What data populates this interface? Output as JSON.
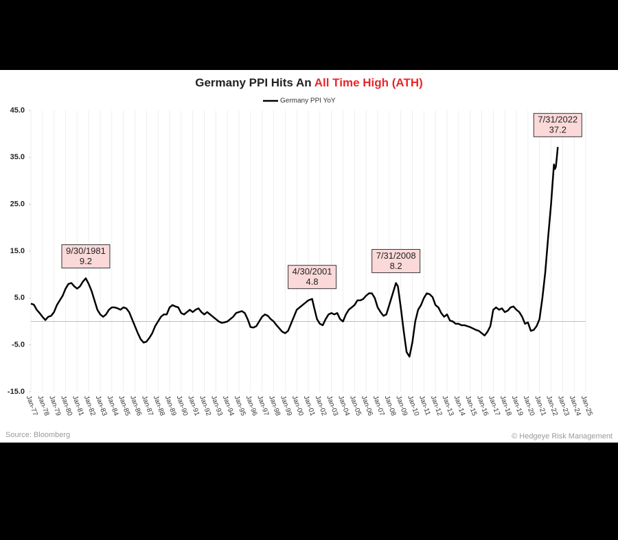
{
  "chart_data": {
    "type": "line",
    "title_parts": [
      "Germany PPI Hits An",
      "All Time High (ATH)"
    ],
    "title_colors": [
      "#222222",
      "#e8262b"
    ],
    "source": "Source: Bloomberg",
    "credit": "© Hedgeye Risk Management",
    "legend": "top",
    "grid": true,
    "xlim": [
      1977,
      2025
    ],
    "xticks": [
      {
        "value": 1977,
        "label": "Jan-77"
      },
      {
        "value": 1978,
        "label": "Jan-78"
      },
      {
        "value": 1979,
        "label": "Jan-79"
      },
      {
        "value": 1980,
        "label": "Jan-80"
      },
      {
        "value": 1981,
        "label": "Jan-81"
      },
      {
        "value": 1982,
        "label": "Jan-82"
      },
      {
        "value": 1983,
        "label": "Jan-83"
      },
      {
        "value": 1984,
        "label": "Jan-84"
      },
      {
        "value": 1985,
        "label": "Jan-85"
      },
      {
        "value": 1986,
        "label": "Jan-86"
      },
      {
        "value": 1987,
        "label": "Jan-87"
      },
      {
        "value": 1988,
        "label": "Jan-88"
      },
      {
        "value": 1989,
        "label": "Jan-89"
      },
      {
        "value": 1990,
        "label": "Jan-90"
      },
      {
        "value": 1991,
        "label": "Jan-91"
      },
      {
        "value": 1992,
        "label": "Jan-92"
      },
      {
        "value": 1993,
        "label": "Jan-93"
      },
      {
        "value": 1994,
        "label": "Jan-94"
      },
      {
        "value": 1995,
        "label": "Jan-95"
      },
      {
        "value": 1996,
        "label": "Jan-96"
      },
      {
        "value": 1997,
        "label": "Jan-97"
      },
      {
        "value": 1998,
        "label": "Jan-98"
      },
      {
        "value": 1999,
        "label": "Jan-99"
      },
      {
        "value": 2000,
        "label": "Jan-00"
      },
      {
        "value": 2001,
        "label": "Jan-01"
      },
      {
        "value": 2002,
        "label": "Jan-02"
      },
      {
        "value": 2003,
        "label": "Jan-03"
      },
      {
        "value": 2004,
        "label": "Jan-04"
      },
      {
        "value": 2005,
        "label": "Jan-05"
      },
      {
        "value": 2006,
        "label": "Jan-06"
      },
      {
        "value": 2007,
        "label": "Jan-07"
      },
      {
        "value": 2008,
        "label": "Jan-08"
      },
      {
        "value": 2009,
        "label": "Jan-09"
      },
      {
        "value": 2010,
        "label": "Jan-10"
      },
      {
        "value": 2011,
        "label": "Jan-11"
      },
      {
        "value": 2012,
        "label": "Jan-12"
      },
      {
        "value": 2013,
        "label": "Jan-13"
      },
      {
        "value": 2014,
        "label": "Jan-14"
      },
      {
        "value": 2015,
        "label": "Jan-15"
      },
      {
        "value": 2016,
        "label": "Jan-16"
      },
      {
        "value": 2017,
        "label": "Jan-17"
      },
      {
        "value": 2018,
        "label": "Jan-18"
      },
      {
        "value": 2019,
        "label": "Jan-19"
      },
      {
        "value": 2020,
        "label": "Jan-20"
      },
      {
        "value": 2021,
        "label": "Jan-21"
      },
      {
        "value": 2022,
        "label": "Jan-22"
      },
      {
        "value": 2023,
        "label": "Jan-23"
      },
      {
        "value": 2024,
        "label": "Jan-24"
      },
      {
        "value": 2025,
        "label": "Jan-25"
      }
    ],
    "ylim": [
      -15,
      45
    ],
    "yticks": [
      {
        "value": 45,
        "label": "45.0"
      },
      {
        "value": 35,
        "label": "35.0"
      },
      {
        "value": 25,
        "label": "25.0"
      },
      {
        "value": 15,
        "label": "15.0"
      },
      {
        "value": 5,
        "label": "5.0"
      },
      {
        "value": -5,
        "label": "-5.0"
      },
      {
        "value": -15,
        "label": "-15.0"
      }
    ],
    "x": [
      1977,
      1977.25,
      1977.5,
      1977.75,
      1978,
      1978.25,
      1978.5,
      1978.75,
      1979,
      1979.25,
      1979.5,
      1979.75,
      1980,
      1980.25,
      1980.5,
      1980.75,
      1981,
      1981.25,
      1981.5,
      1981.75,
      1982,
      1982.25,
      1982.5,
      1982.75,
      1983,
      1983.25,
      1983.5,
      1983.75,
      1984,
      1984.25,
      1984.5,
      1984.75,
      1985,
      1985.25,
      1985.5,
      1985.75,
      1986,
      1986.25,
      1986.5,
      1986.75,
      1987,
      1987.25,
      1987.5,
      1987.75,
      1988,
      1988.25,
      1988.5,
      1988.75,
      1989,
      1989.25,
      1989.5,
      1989.75,
      1990,
      1990.25,
      1990.5,
      1990.75,
      1991,
      1991.25,
      1991.5,
      1991.75,
      1992,
      1992.25,
      1992.5,
      1992.75,
      1993,
      1993.25,
      1993.5,
      1993.75,
      1994,
      1994.25,
      1994.5,
      1994.75,
      1995,
      1995.25,
      1995.5,
      1995.75,
      1996,
      1996.25,
      1996.5,
      1996.75,
      1997,
      1997.25,
      1997.5,
      1997.75,
      1998,
      1998.25,
      1998.5,
      1998.75,
      1999,
      1999.25,
      1999.5,
      1999.75,
      2000,
      2000.25,
      2000.5,
      2000.75,
      2001,
      2001.33,
      2001.5,
      2001.75,
      2002,
      2002.25,
      2002.5,
      2002.75,
      2003,
      2003.25,
      2003.5,
      2003.75,
      2004,
      2004.25,
      2004.5,
      2004.75,
      2005,
      2005.25,
      2005.5,
      2005.75,
      2006,
      2006.25,
      2006.5,
      2006.75,
      2007,
      2007.25,
      2007.5,
      2007.75,
      2008,
      2008.25,
      2008.583,
      2008.75,
      2009,
      2009.25,
      2009.5,
      2009.75,
      2010,
      2010.25,
      2010.5,
      2010.75,
      2011,
      2011.25,
      2011.5,
      2011.75,
      2012,
      2012.25,
      2012.5,
      2012.75,
      2013,
      2013.25,
      2013.5,
      2013.75,
      2014,
      2014.25,
      2014.5,
      2014.75,
      2015,
      2015.25,
      2015.5,
      2015.75,
      2016,
      2016.25,
      2016.5,
      2016.75,
      2017,
      2017.25,
      2017.5,
      2017.75,
      2018,
      2018.25,
      2018.5,
      2018.75,
      2019,
      2019.25,
      2019.5,
      2019.75,
      2020,
      2020.25,
      2020.5,
      2020.75,
      2021,
      2021.25,
      2021.5,
      2021.75,
      2022,
      2022.25,
      2022.333,
      2022.417,
      2022.5,
      2022.583
    ],
    "series": [
      {
        "name": "Germany PPI YoY",
        "color": "#000000",
        "values": [
          3.8,
          3.6,
          2.5,
          1.8,
          1.0,
          0.3,
          1.0,
          1.2,
          2.0,
          3.5,
          4.5,
          5.5,
          7.0,
          8.0,
          8.2,
          7.5,
          7.0,
          7.5,
          8.5,
          9.2,
          8.0,
          6.5,
          4.5,
          2.5,
          1.5,
          1.0,
          1.5,
          2.5,
          3.0,
          3.0,
          2.8,
          2.5,
          3.0,
          2.8,
          2.0,
          0.5,
          -1.0,
          -2.5,
          -3.8,
          -4.5,
          -4.3,
          -3.5,
          -2.5,
          -1.0,
          0.0,
          1.0,
          1.5,
          1.5,
          3.0,
          3.5,
          3.2,
          3.0,
          1.8,
          1.5,
          2.0,
          2.5,
          2.0,
          2.5,
          2.8,
          2.0,
          1.5,
          2.0,
          1.5,
          1.0,
          0.5,
          0.0,
          -0.3,
          -0.2,
          0.0,
          0.5,
          1.0,
          1.8,
          2.0,
          2.2,
          1.8,
          0.5,
          -1.2,
          -1.3,
          -1.0,
          0.0,
          1.0,
          1.5,
          1.2,
          0.5,
          0.0,
          -0.8,
          -1.5,
          -2.2,
          -2.5,
          -2.0,
          -0.5,
          1.0,
          2.5,
          3.0,
          3.5,
          4.0,
          4.5,
          4.8,
          3.0,
          0.5,
          -0.5,
          -0.8,
          0.5,
          1.5,
          1.8,
          1.5,
          1.8,
          0.5,
          0.0,
          1.5,
          2.5,
          3.0,
          3.5,
          4.5,
          4.5,
          4.8,
          5.5,
          6.0,
          6.0,
          5.0,
          3.0,
          2.0,
          1.2,
          1.5,
          3.5,
          5.5,
          8.2,
          7.5,
          3.0,
          -2.0,
          -6.5,
          -7.5,
          -4.5,
          0.0,
          2.5,
          3.5,
          5.0,
          6.0,
          5.8,
          5.2,
          3.5,
          3.0,
          1.8,
          1.0,
          1.5,
          0.2,
          0.0,
          -0.5,
          -0.5,
          -0.8,
          -0.8,
          -1.0,
          -1.2,
          -1.5,
          -1.8,
          -2.0,
          -2.5,
          -3.0,
          -2.2,
          -1.0,
          2.5,
          3.0,
          2.5,
          2.8,
          2.0,
          2.3,
          3.0,
          3.2,
          2.5,
          2.0,
          1.0,
          -0.5,
          -0.2,
          -2.0,
          -1.8,
          -1.0,
          0.5,
          5.0,
          10.5,
          18.0,
          25.0,
          33.5,
          32.5,
          33.0,
          35.0,
          37.2
        ]
      }
    ],
    "annotations": [
      {
        "date": "9/30/1981",
        "x": 1981.75,
        "value": 9.2
      },
      {
        "date": "4/30/2001",
        "x": 2001.33,
        "value": 4.8
      },
      {
        "date": "7/31/2008",
        "x": 2008.583,
        "value": 8.2
      },
      {
        "date": "7/31/2022",
        "x": 2022.583,
        "value": 37.2
      }
    ],
    "annotation_fill": "#fbd9d9"
  }
}
